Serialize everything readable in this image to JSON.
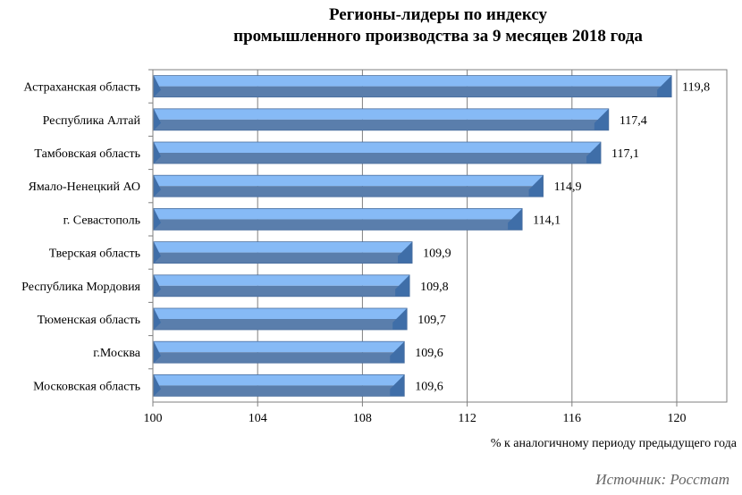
{
  "chart_data": {
    "type": "bar",
    "orientation": "horizontal",
    "title_line1": "Регионы-лидеры по индексу",
    "title_line2": "промышленного производства за 9 месяцев 2018 года",
    "xlabel": "% к аналогичному периоду предыдущего года",
    "categories": [
      "Астраханская область",
      "Республика Алтай",
      "Тамбовская область",
      "Ямало-Ненецкий АО",
      "г. Севастополь",
      "Тверская область",
      "Республика Мордовия",
      "Тюменская область",
      "г.Москва",
      "Московская область"
    ],
    "values": [
      119.8,
      117.4,
      117.1,
      114.9,
      114.1,
      109.9,
      109.8,
      109.7,
      109.6,
      109.6
    ],
    "data_labels": [
      "119,8",
      "117,4",
      "117,1",
      "114,9",
      "114,1",
      "109,9",
      "109,8",
      "109,7",
      "109,6",
      "109,6"
    ],
    "xlim": [
      100,
      122
    ],
    "xticks": [
      100,
      104,
      108,
      112,
      116,
      120
    ],
    "grid": true,
    "legend": "none",
    "colors": {
      "bar_top": "#86baf6",
      "bar_bottom": "#5a7eac",
      "bar_bevel": "#3f6ea8",
      "grid": "#7f7f7f"
    }
  },
  "source": "Источник: Росстат"
}
